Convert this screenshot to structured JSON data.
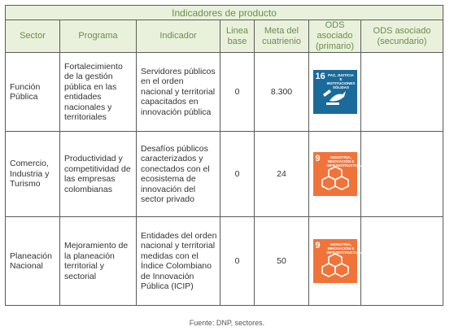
{
  "table": {
    "title": "Indicadores de producto",
    "headers": {
      "sector": "Sector",
      "programa": "Programa",
      "indicador": "Indicador",
      "linea_base": "Linea base",
      "meta": "Meta del cuatrienio",
      "ods_primario": "ODS asociado (primario)",
      "ods_secundario": "ODS asociado (secundario)"
    },
    "rows": [
      {
        "sector": "Función Pública",
        "programa": "Fortalecimiento de la gestión pública en las entidades nacionales y territoriales",
        "indicador": "Servidores públicos en el orden nacional y territorial capacitados en innovación pública",
        "linea_base": "0",
        "meta": "8.300",
        "ods": {
          "number": "16",
          "label": "PAZ, JUSTICIA E INSTITUCIONES SÓLIDAS",
          "color": "#1a6a9a",
          "icon": "dove-gavel-icon"
        },
        "ods_secundario": ""
      },
      {
        "sector": "Comercio, Industria y Turismo",
        "programa": "Productividad y competitividad de las empresas colombianas",
        "indicador": "Desafíos públicos caracterizados y conectados con el ecosistema de innovación del sector privado",
        "linea_base": "0",
        "meta": "24",
        "ods": {
          "number": "9",
          "label": "INDUSTRIA, INNOVACIÓN E INFRAESTRUCTURA",
          "color": "#f0743a",
          "icon": "cubes-icon"
        },
        "ods_secundario": ""
      },
      {
        "sector": "Planeación Nacional",
        "programa": "Mejoramiento de la planeación territorial y sectorial",
        "indicador": "Entidades del orden nacional y territorial medidas con el Índice Colombiano de Innovación Pública (ICIP)",
        "linea_base": "0",
        "meta": "50",
        "ods": {
          "number": "9",
          "label": "INDUSTRIA, INNOVACIÓN E INFRAESTRUCTURA",
          "color": "#f0743a",
          "icon": "cubes-icon"
        },
        "ods_secundario": ""
      }
    ]
  },
  "source": "Fuente: DNP, sectores."
}
